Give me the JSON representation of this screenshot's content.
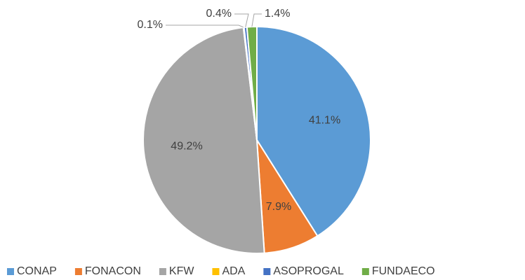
{
  "chart_data": {
    "type": "pie",
    "categories": [
      "CONAP",
      "FONACON",
      "KFW",
      "ADA",
      "ASOPROGAL",
      "FUNDAECO"
    ],
    "values": [
      41.1,
      7.9,
      49.2,
      0.1,
      0.4,
      1.4
    ],
    "value_labels": [
      "41.1%",
      "7.9%",
      "49.2%",
      "0.1%",
      "0.4%",
      "1.4%"
    ],
    "colors": [
      "#5b9bd5",
      "#ed7d31",
      "#a5a5a5",
      "#ffc000",
      "#4472c4",
      "#70ad47"
    ],
    "legend": "bottom"
  }
}
